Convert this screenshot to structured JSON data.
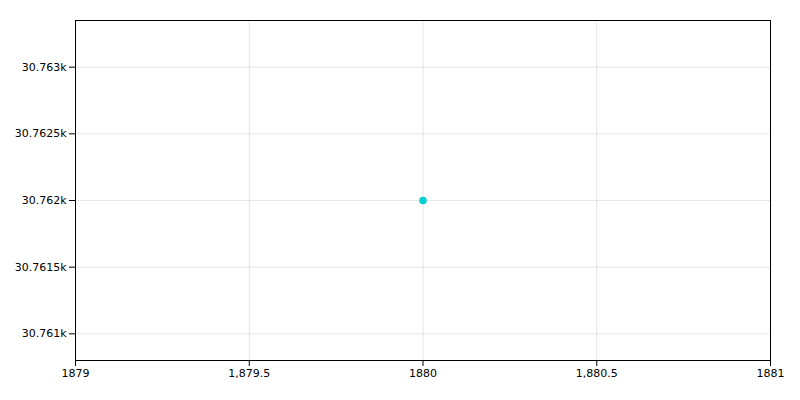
{
  "chart_data": {
    "type": "scatter",
    "x": [
      1880
    ],
    "values": [
      30762
    ],
    "color": "#00CED1",
    "xlim": [
      1879,
      1881
    ],
    "xticks": [
      1879,
      {
        "value": 1879.5,
        "label": "1,879.5"
      },
      1880,
      {
        "value": 1880.5,
        "label": "1,880.5"
      },
      1881
    ],
    "ylim": [
      30760.8,
      30763.35
    ],
    "yticks": [
      {
        "value": 30761,
        "label": "30.761k"
      },
      {
        "value": 30761.5,
        "label": "30.7615k"
      },
      {
        "value": 30762,
        "label": "30.762k"
      },
      {
        "value": 30762.5,
        "label": "30.7625k"
      },
      {
        "value": 30763,
        "label": "30.763k"
      }
    ],
    "grid": true
  }
}
